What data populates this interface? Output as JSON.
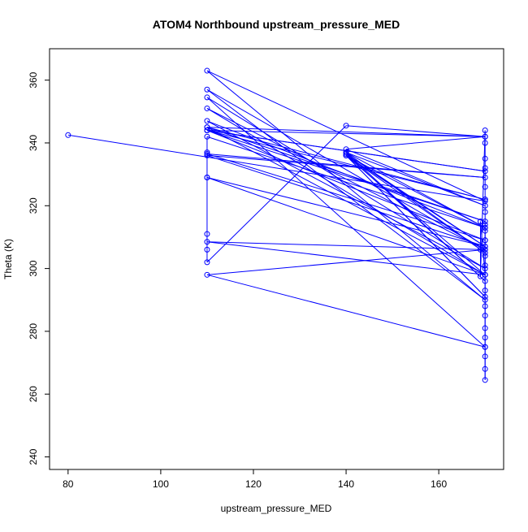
{
  "chart_data": {
    "type": "line",
    "title": "ATOM4 Northbound upstream_pressure_MED",
    "xlabel": "upstream_pressure_MED",
    "ylabel": "Theta (K)",
    "xlim": [
      76,
      174
    ],
    "ylim": [
      236,
      370
    ],
    "x_ticks": [
      80,
      100,
      120,
      140,
      160
    ],
    "y_ticks": [
      240,
      260,
      280,
      300,
      320,
      340,
      360
    ],
    "grid": false,
    "legend": "none",
    "color": "#0000ff",
    "marker": "open-circle",
    "x": [
      80,
      170,
      110,
      170,
      110,
      170,
      110,
      170,
      110,
      170,
      110,
      170,
      110,
      170,
      110,
      170,
      110,
      170,
      110,
      170,
      110,
      170,
      110,
      170,
      110,
      170,
      110,
      170,
      110,
      170,
      110,
      170,
      110,
      110,
      110,
      110,
      110,
      110,
      140,
      170,
      140,
      170,
      140,
      170,
      140,
      170,
      140,
      170,
      140,
      170,
      140,
      170,
      140,
      170,
      169,
      169,
      169,
      170,
      170,
      170,
      170,
      170,
      170,
      170,
      170,
      170,
      170,
      170,
      170,
      170,
      170,
      170,
      170,
      170,
      170,
      170,
      170,
      170,
      170
    ],
    "y": [
      342.5,
      321.5,
      363,
      290,
      357,
      306,
      351,
      298,
      345,
      342,
      344,
      331,
      344,
      322,
      345,
      315,
      344,
      309,
      336.5,
      329,
      336,
      307,
      329,
      298,
      308.5,
      306,
      298,
      275,
      354.5,
      300,
      347,
      313,
      342,
      337,
      329,
      311,
      306,
      302,
      345.5,
      342,
      338,
      320,
      337,
      296,
      336.5,
      307,
      336,
      313,
      337,
      305,
      336,
      291,
      336,
      298,
      315,
      306,
      297.5,
      344,
      340,
      335,
      332,
      326,
      322,
      318,
      312,
      309,
      304,
      301,
      293,
      288,
      285,
      281,
      278,
      275,
      272,
      268,
      264.5,
      309,
      314
    ]
  }
}
